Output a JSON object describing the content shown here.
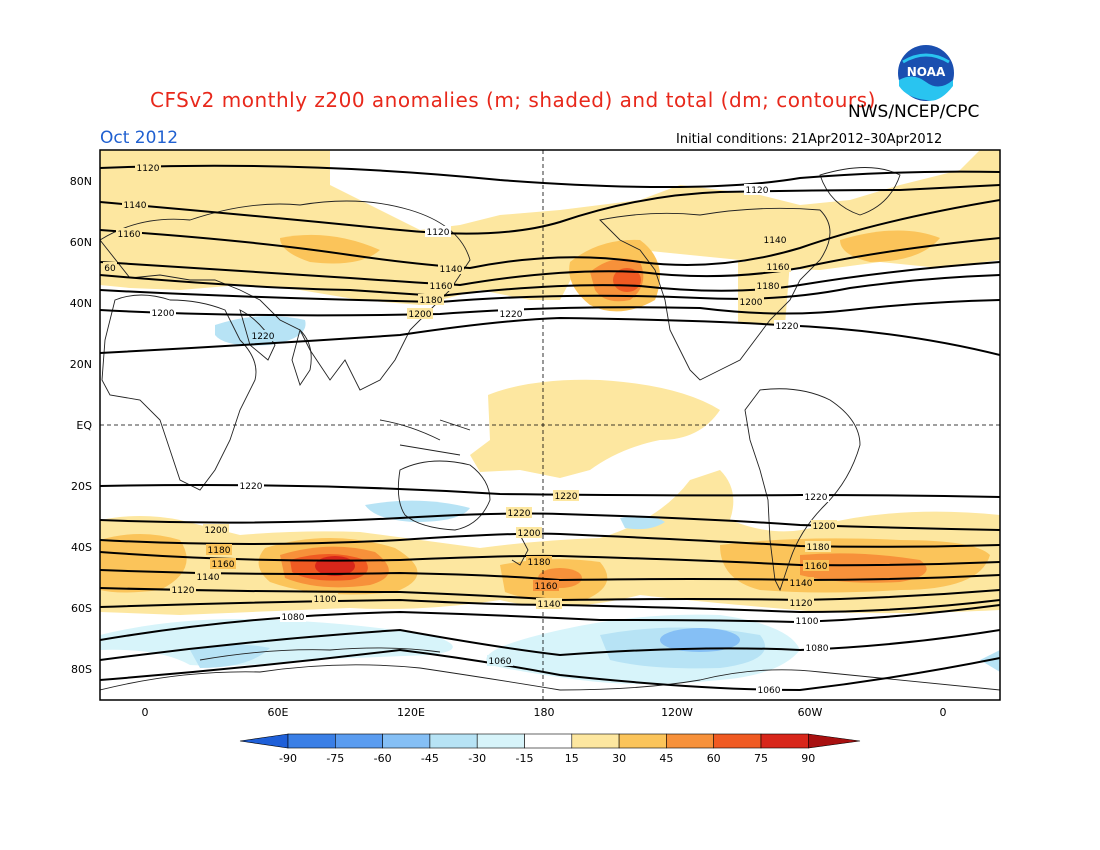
{
  "header": {
    "title": "CFSv2 monthly z200 anomalies (m; shaded) and total (dm; contours)",
    "credit": "NWS/NCEP/CPC",
    "month": "Oct 2012",
    "initial_conditions": "Initial conditions: 21Apr2012–30Apr2012"
  },
  "logo": {
    "icon": "noaa-logo-icon",
    "text": "NOAA"
  },
  "axes": {
    "lat_labels": [
      "80N",
      "60N",
      "40N",
      "20N",
      "EQ",
      "20S",
      "40S",
      "60S",
      "80S"
    ],
    "lon_labels": [
      "0",
      "60E",
      "120E",
      "180",
      "120W",
      "60W",
      "0"
    ]
  },
  "contours": [
    {
      "value": "1120",
      "labels": [
        "1120",
        "1120",
        "1120"
      ]
    },
    {
      "value": "1140",
      "labels": [
        "1140",
        "1140",
        "1140"
      ]
    },
    {
      "value": "1160",
      "labels": [
        "1160",
        "1160",
        "1160"
      ]
    },
    {
      "value": "1180",
      "labels": [
        "1180",
        "1180"
      ]
    },
    {
      "value": "1200",
      "labels": [
        "1200",
        "1200",
        "1200"
      ]
    },
    {
      "value": "1220",
      "labels": [
        "1220",
        "1220",
        "1220"
      ]
    }
  ],
  "contour_labels_extra": [
    "60",
    "1220",
    "1220",
    "1200",
    "1180",
    "1160",
    "1140",
    "1120",
    "1100",
    "1080",
    "1060",
    "1060",
    "1080",
    "1100",
    "1120",
    "1140",
    "1160",
    "1180",
    "1200",
    "1220",
    "1220",
    "1200",
    "1180",
    "1160",
    "1140",
    "1120",
    "1100",
    "1080",
    "1060"
  ],
  "colorbar": {
    "labels": [
      "-90",
      "-75",
      "-60",
      "-45",
      "-30",
      "-15",
      "15",
      "30",
      "45",
      "60",
      "75",
      "90"
    ],
    "colors": [
      "#1e5fd8",
      "#3a7fe6",
      "#5a9cf0",
      "#85bff5",
      "#b7e3f5",
      "#d7f4fa",
      "#ffffff",
      "#fde7a0",
      "#fbc45a",
      "#f7913a",
      "#f05a22",
      "#d8261a",
      "#a81010"
    ]
  }
}
